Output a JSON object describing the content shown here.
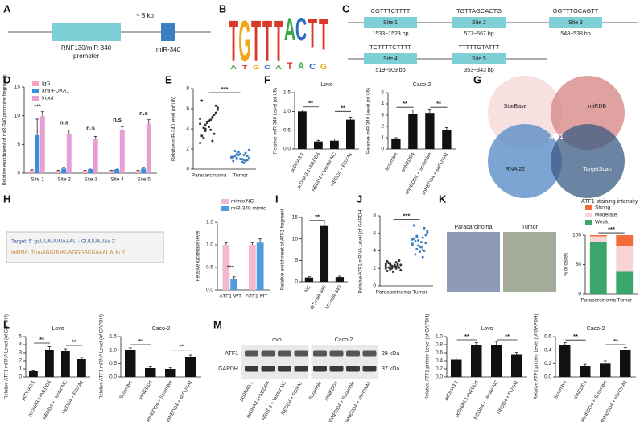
{
  "panel_labels": [
    "A",
    "B",
    "C",
    "D",
    "E",
    "F",
    "G",
    "H",
    "I",
    "J",
    "K",
    "L",
    "M"
  ],
  "diagram_a": {
    "distance": "~ 8 kb",
    "promoter_lines": [
      "RNF130/miR-340",
      "promoter"
    ],
    "gene": "miR-340"
  },
  "logo": {
    "letters": [
      "T",
      "G",
      "T",
      "T",
      "T",
      "A",
      "C",
      "T",
      "T"
    ],
    "small": [
      "A",
      "T",
      "G",
      "C",
      "A",
      "T",
      "A",
      "C",
      "G"
    ]
  },
  "sites": [
    {
      "sequence": "CGTTTCTTTT",
      "name": "Site 1",
      "range": "1533~1523 bp"
    },
    {
      "sequence": "TGTTAGCACTG",
      "name": "Site 2",
      "range": "577~567 bp"
    },
    {
      "sequence": "GGTTTGCAGTT",
      "name": "Site 3",
      "range": "548~538 bp"
    },
    {
      "sequence": "TCTTTTCTTTT",
      "name": "Site 4",
      "range": "519~509 bp"
    },
    {
      "sequence": "TTTTTGTATTT",
      "name": "Site 5",
      "range": "353~343 bp"
    }
  ],
  "venn": {
    "sets": [
      "StarBase",
      "miRDB",
      "RNA 22",
      "TargetScan"
    ],
    "center": "ATF1"
  },
  "binding": {
    "target": "Target: 5'  gaUUAUUUAAAU - GUUUAUAu  3'",
    "mirna": "miRNA: 3'  uuAGGUUAUAGGGACGAAAUAUu  5'"
  },
  "ihc": {
    "labels": [
      "Paracarcinoma",
      "Tumor"
    ]
  },
  "blot": {
    "groups": [
      "Lovo",
      "Caco-2"
    ],
    "rows": [
      {
        "name": "ATF1",
        "size": "29 kDa"
      },
      {
        "name": "GAPDH",
        "size": "37 kDa"
      }
    ],
    "lanes": [
      "pcDNA3.1",
      "pcDNA3.1+NEDD4",
      "NEDD4 + Vector NC",
      "NEDD4 + FOXA1",
      "Scramble",
      "shNEDD4",
      "shNEDD4 + Scramble",
      "shNEDD4 + shFOXA1"
    ]
  },
  "chart_data": [
    {
      "type": "bar",
      "ylabel": "Relative enrichment of miR-340 promoter fragments",
      "categories": [
        "Site 1",
        "Site 2",
        "Site 3",
        "Site 4",
        "Site 5"
      ],
      "series": [
        {
          "name": "IgG",
          "color": "#f2a3bf",
          "values": [
            0.5,
            0.4,
            0.4,
            0.4,
            0.4
          ],
          "errors": [
            0.1,
            0.1,
            0.1,
            0.1,
            0.1
          ]
        },
        {
          "name": "anti-FOXA1",
          "color": "#3a8fd8",
          "values": [
            6.6,
            0.8,
            0.7,
            0.7,
            0.8
          ],
          "errors": [
            2.8,
            0.2,
            0.2,
            0.2,
            0.2
          ]
        },
        {
          "name": "Input",
          "color": "#e4a0d2",
          "values": [
            9.9,
            6.9,
            5.9,
            7.5,
            8.6
          ],
          "errors": [
            0.8,
            0.6,
            0.5,
            0.6,
            0.7
          ]
        }
      ],
      "ylim": [
        0,
        15
      ],
      "yticks": [
        0,
        5,
        10,
        15
      ],
      "annotations": [
        "***",
        "n.s",
        "n.s",
        "n.s",
        "n.s"
      ]
    },
    {
      "type": "scatter",
      "ylabel": "Relative miR-340 level (of U6)",
      "categories": [
        "Paracarcinoma",
        "Tumor"
      ],
      "colors": [
        "#333333",
        "#3d7fc1"
      ],
      "values": [
        [
          4.5,
          5.2,
          3.8,
          6.1,
          4.9,
          3.1,
          5.6,
          4.2,
          6.8,
          3.5,
          4.7,
          5.0,
          2.8,
          4.4,
          5.9,
          3.9,
          4.1,
          6.3,
          4.8,
          3.3,
          5.4,
          4.6,
          2.6,
          5.1,
          4.0
        ],
        [
          1.2,
          0.9,
          1.5,
          1.1,
          0.7,
          1.8,
          1.3,
          1.0,
          0.8,
          1.6,
          1.4,
          1.2,
          0.6,
          1.1,
          1.9,
          1.0,
          1.3,
          0.9,
          1.5,
          1.2,
          0.8,
          1.7,
          1.1,
          1.4,
          1.0
        ]
      ],
      "ylim": [
        0,
        8
      ],
      "yticks": [
        0,
        2,
        4,
        6,
        8
      ],
      "annotations": [
        "***"
      ]
    },
    {
      "type": "bar",
      "title": "Lovo",
      "ylabel": "Relative miR-340 Level (of U6)",
      "color": "#111111",
      "categories": [
        "pcDNA3.1",
        "pcDNA3.1+NEDD4",
        "NEDD4 + Vector NC",
        "NEDD4 + FOXA1"
      ],
      "values": [
        1.0,
        0.2,
        0.22,
        0.78
      ],
      "errors": [
        0.04,
        0.03,
        0.05,
        0.07
      ],
      "ylim": [
        0,
        1.5
      ],
      "yticks": [
        {
          "value": 0,
          "label": "0.0"
        },
        0.5,
        {
          "value": 1,
          "label": "1.0"
        },
        1.5
      ],
      "annotations": [
        "**",
        "**"
      ]
    },
    {
      "type": "bar",
      "title": "Caco-2",
      "ylabel": "Relative miR-340 Level (of U6)",
      "color": "#111111",
      "categories": [
        "Scramble",
        "shNEDD4",
        "shNEDD4 + Scramble",
        "shNEDD4 + shFOXA1"
      ],
      "values": [
        0.9,
        3.1,
        3.2,
        1.7
      ],
      "errors": [
        0.1,
        0.35,
        0.35,
        0.2
      ],
      "ylim": [
        0,
        5
      ],
      "yticks": [
        0,
        1,
        2,
        3,
        4,
        5
      ],
      "annotations": [
        "**",
        "**"
      ]
    },
    {
      "type": "bar",
      "ylabel": "Relative luciferase level",
      "categories": [
        "ATF1-WT",
        "ATF1-MT"
      ],
      "series": [
        {
          "name": "mimic NC",
          "color": "#f5b8d2",
          "values": [
            1.0,
            1.0
          ],
          "errors": [
            0.05,
            0.05
          ]
        },
        {
          "name": "miR-340 mimic",
          "color": "#4f9de0",
          "values": [
            0.25,
            1.05
          ],
          "errors": [
            0.04,
            0.08
          ]
        }
      ],
      "ylim": [
        0,
        1.5
      ],
      "yticks": [
        {
          "value": 0,
          "label": "0.0"
        },
        0.5,
        {
          "value": 1,
          "label": "1.0"
        },
        1.5
      ],
      "annotations": [
        "***"
      ]
    },
    {
      "type": "bar",
      "ylabel": "Relative enrichment of ATF1 fragment",
      "color": "#111111",
      "categories": [
        "NC",
        "WT-miR-340",
        "MT-miR-340"
      ],
      "values": [
        1,
        13,
        1.1
      ],
      "errors": [
        0.2,
        1.2,
        0.2
      ],
      "ylim": [
        0,
        15
      ],
      "yticks": [
        0,
        5,
        10,
        15
      ],
      "annotations": [
        "**"
      ]
    },
    {
      "type": "scatter",
      "ylabel": "Relative ATF1 mRNA Level (of GAPDH)",
      "categories": [
        "Paracarcinoma",
        "Tumor"
      ],
      "colors": [
        "#333333",
        "#3d7fc1"
      ],
      "values": [
        [
          2.3,
          2.0,
          2.6,
          1.8,
          2.4,
          2.1,
          2.9,
          2.2,
          1.7,
          2.5,
          2.3,
          2.0,
          2.7,
          1.9,
          2.4,
          2.2,
          2.6,
          2.1,
          1.6,
          2.8,
          2.3,
          2.0,
          2.5,
          2.2,
          2.4
        ],
        [
          4.8,
          5.5,
          4.2,
          6.3,
          5.0,
          3.6,
          5.8,
          4.5,
          6.9,
          4.0,
          5.2,
          4.7,
          3.3,
          5.6,
          6.1,
          4.4,
          5.1,
          4.9,
          3.9,
          5.4,
          6.6,
          4.6,
          5.3,
          4.1,
          5.7
        ]
      ],
      "ylim": [
        0,
        8
      ],
      "yticks": [
        0,
        2,
        4,
        6,
        8
      ],
      "annotations": [
        "***"
      ]
    },
    {
      "type": "stacked_bar",
      "ylabel": "% of cases",
      "legend_title": "ATF1 staining intensity",
      "categories": [
        "Paracarcinoma",
        "Tumor"
      ],
      "series": [
        {
          "name": "Weak",
          "color": "#3aa66b",
          "values": [
            88,
            38
          ]
        },
        {
          "name": "Moderate",
          "color": "#f7d3d3",
          "values": [
            10,
            44
          ]
        },
        {
          "name": "Strong",
          "color": "#f26b3a",
          "values": [
            2,
            18
          ]
        }
      ],
      "ylim": [
        0,
        100
      ],
      "yticks": [
        0,
        50,
        100
      ],
      "annotations": [
        "***"
      ]
    },
    {
      "type": "bar",
      "title": "Lovo",
      "ylabel": "Relative ATF1 mRNA Level (of GAPDH)",
      "color": "#111111",
      "categories": [
        "pcDNA3.1",
        "pcDNA3.1+NEDD4",
        "NEDD4 + Vector NC",
        "NEDD4 + FOXA1"
      ],
      "values": [
        0.7,
        3.4,
        3.2,
        2.2
      ],
      "errors": [
        0.05,
        0.35,
        0.3,
        0.2
      ],
      "ylim": [
        0,
        5
      ],
      "yticks": [
        0,
        1,
        2,
        3,
        4,
        5
      ],
      "annotations": [
        "**",
        "**"
      ]
    },
    {
      "type": "bar",
      "title": "Caco-2",
      "ylabel": "Relative ATF1 mRNA Level (of GAPDH)",
      "color": "#111111",
      "categories": [
        "Scramble",
        "shNEDD4",
        "shNEDD4 + Scramble",
        "shNEDD4 + shFOXA1"
      ],
      "values": [
        1.0,
        0.33,
        0.3,
        0.75
      ],
      "errors": [
        0.08,
        0.05,
        0.04,
        0.06
      ],
      "ylim": [
        0,
        1.5
      ],
      "yticks": [
        {
          "value": 0,
          "label": "0.0"
        },
        0.5,
        {
          "value": 1,
          "label": "1.0"
        },
        1.5
      ],
      "annotations": [
        "**",
        "**"
      ]
    },
    {
      "type": "bar",
      "title": "Lovo",
      "ylabel": "Relative ATF1 protein Level (of GAPDH)",
      "color": "#111111",
      "categories": [
        "pcDNA3.1",
        "pcDNA3.1+NEDD4",
        "NEDD4 + Vector NC",
        "NEDD4 + FOXA1"
      ],
      "values": [
        0.43,
        0.78,
        0.8,
        0.55
      ],
      "errors": [
        0.04,
        0.07,
        0.08,
        0.06
      ],
      "ylim": [
        0,
        1
      ],
      "yticks": [
        {
          "value": 0,
          "label": "0.0"
        },
        0.2,
        0.4,
        0.6,
        0.8,
        {
          "value": 1,
          "label": "1.0"
        }
      ],
      "annotations": [
        "**",
        "**"
      ]
    },
    {
      "type": "bar",
      "title": "Caco-2",
      "ylabel": "Relative ATF1 protein Level (of GAPDH)",
      "color": "#111111",
      "categories": [
        "Scramble",
        "shNEDD4",
        "shNEDD4 + Scramble",
        "shNEDD4 + shFOXA1"
      ],
      "values": [
        0.47,
        0.16,
        0.2,
        0.4
      ],
      "errors": [
        0.04,
        0.03,
        0.04,
        0.04
      ],
      "ylim": [
        0,
        0.6
      ],
      "yticks": [
        {
          "value": 0,
          "label": "0.0"
        },
        0.2,
        0.4,
        0.6
      ],
      "annotations": [
        "**",
        "**"
      ]
    }
  ]
}
